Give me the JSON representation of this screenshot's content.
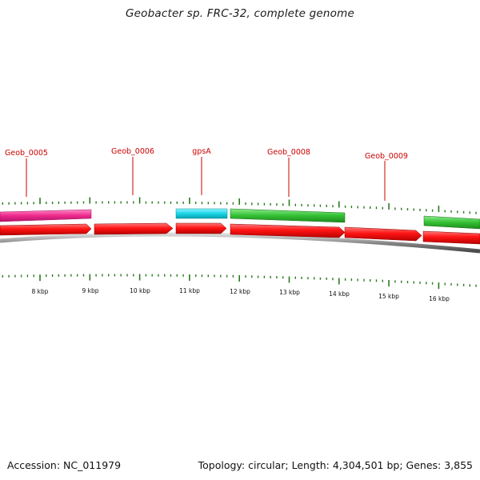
{
  "title": "Geobacter sp. FRC-32, complete genome",
  "footer": {
    "accession": "Accession: NC_011979",
    "summary": "Topology: circular; Length: 4,304,501 bp; Genes: 3,855"
  },
  "scale": {
    "unit": "kbp",
    "major_ticks": [
      "8 kbp",
      "9 kbp",
      "10 kbp",
      "11 kbp",
      "12 kbp",
      "13 kbp",
      "14 kbp",
      "15 kbp",
      "16 kbp"
    ]
  },
  "gene_labels": [
    "Geob_0005",
    "Geob_0006",
    "gpsA",
    "Geob_0008",
    "Geob_0009"
  ],
  "colors": {
    "label": "#cc0000",
    "tick": "#2a7a1f",
    "feature_magenta": "#ee2a8c",
    "feature_cyan": "#19d6e6",
    "feature_green": "#33c033",
    "cds": "#ee1111",
    "backbone": "#777777"
  }
}
